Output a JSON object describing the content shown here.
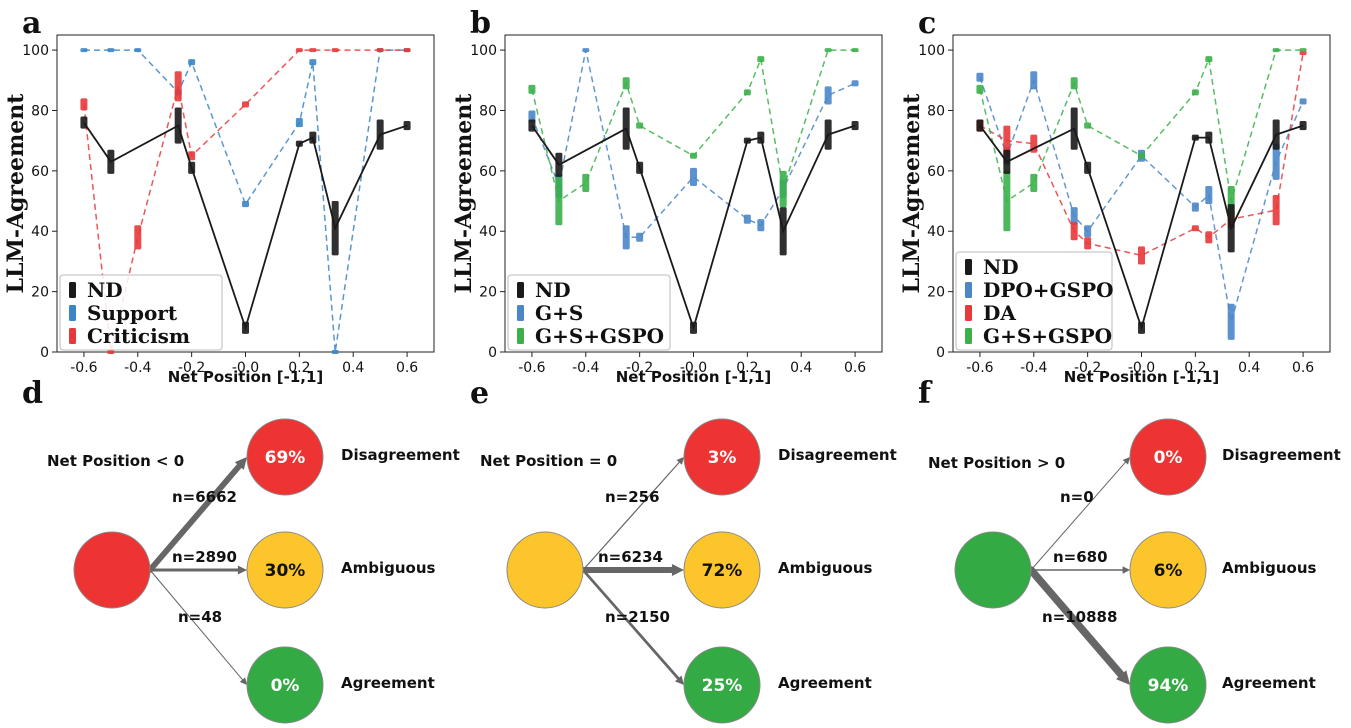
{
  "chart_data": [
    {
      "panel": "a",
      "type": "line",
      "xlabel": "Net Position [-1,1]",
      "ylabel": "LLM-Agreement",
      "xlim": [
        -0.7,
        0.7
      ],
      "ylim": [
        0,
        105
      ],
      "x_ticks": [
        -0.6,
        -0.4,
        -0.2,
        -0.0,
        0.2,
        0.4,
        0.6
      ],
      "x_tick_labels": [
        "-0.6",
        "-0.4",
        "-0.2",
        "-0.0",
        "0.2",
        "0.4",
        "0.6"
      ],
      "y_ticks": [
        0,
        20,
        40,
        60,
        80,
        100
      ],
      "legend": "lower-left",
      "series": [
        {
          "name": "ND",
          "color": "#1a1a1a",
          "style": "solid",
          "x": [
            -0.6,
            -0.5,
            -0.25,
            -0.2,
            0.0,
            0.2,
            0.25,
            0.333,
            0.5,
            0.6
          ],
          "y": [
            76,
            63,
            75,
            61,
            8,
            69,
            71,
            41,
            72,
            75
          ],
          "err": [
            2,
            4,
            6,
            2,
            2,
            1,
            2,
            9,
            5,
            1.5
          ]
        },
        {
          "name": "Support",
          "color": "#3a85c8",
          "style": "dashed",
          "x": [
            -0.6,
            -0.5,
            -0.4,
            -0.25,
            -0.2,
            0.0,
            0.2,
            0.25,
            0.333,
            0.5,
            0.6
          ],
          "y": [
            100,
            100,
            100,
            86,
            96,
            49,
            76,
            96,
            0,
            100,
            100
          ],
          "err": [
            0,
            0,
            0,
            1,
            1,
            1,
            1.5,
            1,
            0,
            0,
            0
          ]
        },
        {
          "name": "Criticism",
          "color": "#e8393a",
          "style": "dashed",
          "x": [
            -0.6,
            -0.5,
            -0.4,
            -0.25,
            -0.2,
            0.0,
            0.2,
            0.25,
            0.333,
            0.5,
            0.6
          ],
          "y": [
            82,
            0,
            38,
            88,
            65,
            82,
            100,
            100,
            100,
            100,
            100
          ],
          "err": [
            2,
            0,
            4,
            5,
            1.5,
            1,
            0,
            0,
            0,
            0,
            0
          ]
        }
      ]
    },
    {
      "panel": "b",
      "type": "line",
      "xlabel": "Net Position [-1,1]",
      "ylabel": "LLM-Agreement",
      "xlim": [
        -0.7,
        0.7
      ],
      "ylim": [
        0,
        105
      ],
      "x_ticks": [
        -0.6,
        -0.4,
        -0.2,
        -0.0,
        0.2,
        0.4,
        0.6
      ],
      "x_tick_labels": [
        "-0.6",
        "-0.4",
        "-0.2",
        "-0.0",
        "0.2",
        "0.4",
        "0.6"
      ],
      "y_ticks": [
        0,
        20,
        40,
        60,
        80,
        100
      ],
      "legend": "lower-left",
      "series": [
        {
          "name": "ND",
          "color": "#1a1a1a",
          "style": "solid",
          "x": [
            -0.6,
            -0.5,
            -0.25,
            -0.2,
            0.0,
            0.2,
            0.25,
            0.333,
            0.5,
            0.6
          ],
          "y": [
            75,
            62,
            74,
            61,
            8,
            70,
            71,
            40,
            72,
            75
          ],
          "err": [
            2,
            4,
            7,
            2,
            2,
            1,
            2,
            8,
            5,
            1.5
          ]
        },
        {
          "name": "G+S",
          "color": "#4a86c8",
          "style": "dashed",
          "x": [
            -0.6,
            -0.5,
            -0.4,
            -0.25,
            -0.2,
            0.0,
            0.2,
            0.25,
            0.333,
            0.5,
            0.6
          ],
          "y": [
            78,
            55,
            100,
            38,
            38,
            58,
            44,
            42,
            54,
            85,
            89
          ],
          "err": [
            2,
            4,
            0,
            4,
            1.5,
            3,
            1.5,
            2,
            3,
            3,
            1
          ]
        },
        {
          "name": "G+S+GSPO",
          "color": "#3bb04a",
          "style": "dashed",
          "x": [
            -0.6,
            -0.5,
            -0.4,
            -0.25,
            -0.2,
            0.0,
            0.2,
            0.25,
            0.333,
            0.5,
            0.6
          ],
          "y": [
            87,
            50,
            56,
            89,
            75,
            65,
            86,
            97,
            54,
            100,
            100
          ],
          "err": [
            1.5,
            8,
            3,
            2,
            1,
            1,
            1,
            1,
            6,
            0,
            0
          ]
        }
      ]
    },
    {
      "panel": "c",
      "type": "line",
      "xlabel": "Net Position [-1,1]",
      "ylabel": "LLM-Agreement",
      "xlim": [
        -0.7,
        0.7
      ],
      "ylim": [
        0,
        105
      ],
      "x_ticks": [
        -0.6,
        -0.4,
        -0.2,
        -0.0,
        0.2,
        0.4,
        0.6
      ],
      "x_tick_labels": [
        "-0.6",
        "-0.4",
        "-0.2",
        "-0.0",
        "0.2",
        "0.4",
        "0.6"
      ],
      "y_ticks": [
        0,
        20,
        40,
        60,
        80,
        100
      ],
      "legend": "lower-left",
      "series": [
        {
          "name": "ND",
          "color": "#1a1a1a",
          "style": "solid",
          "x": [
            -0.6,
            -0.5,
            -0.25,
            -0.2,
            0.0,
            0.2,
            0.25,
            0.333,
            0.5,
            0.6
          ],
          "y": [
            75,
            63,
            74,
            61,
            8,
            71,
            71,
            41,
            72,
            75
          ],
          "err": [
            2,
            4,
            7,
            2,
            2,
            1,
            2,
            8,
            5,
            1.5
          ]
        },
        {
          "name": "DPO+GSPO",
          "color": "#4a86c8",
          "style": "dashed",
          "x": [
            -0.6,
            -0.5,
            -0.4,
            -0.25,
            -0.2,
            0.0,
            0.2,
            0.25,
            0.333,
            0.5,
            0.6
          ],
          "y": [
            91,
            65,
            90,
            45,
            40,
            65,
            48,
            52,
            10,
            63,
            83
          ],
          "err": [
            1.5,
            3,
            3,
            3,
            2,
            2,
            1.5,
            3,
            6,
            6,
            1
          ]
        },
        {
          "name": "DA",
          "color": "#e8393a",
          "style": "dashed",
          "x": [
            -0.6,
            -0.5,
            -0.4,
            -0.25,
            -0.2,
            0.0,
            0.2,
            0.25,
            0.333,
            0.5,
            0.6
          ],
          "y": [
            75,
            70,
            69,
            40,
            36,
            32,
            41,
            38,
            44,
            47,
            99
          ],
          "err": [
            2,
            5,
            3,
            3,
            2,
            3,
            1,
            2,
            3,
            5,
            0.5
          ]
        },
        {
          "name": "G+S+GSPO",
          "color": "#3bb04a",
          "style": "dashed",
          "x": [
            -0.6,
            -0.5,
            -0.4,
            -0.25,
            -0.2,
            0.0,
            0.2,
            0.25,
            0.333,
            0.5,
            0.6
          ],
          "y": [
            87,
            50,
            56,
            89,
            75,
            65,
            86,
            97,
            50,
            100,
            100
          ],
          "err": [
            1.5,
            10,
            3,
            2,
            1,
            1,
            1,
            1,
            5,
            0,
            0
          ]
        }
      ]
    }
  ],
  "flows": [
    {
      "panel": "d",
      "title": "Net Position < 0",
      "source_color": "#ee3333",
      "targets": [
        {
          "pct": "69%",
          "label": "Disagreement",
          "n": "n=6662",
          "count": 6662,
          "color": "#ee3333",
          "text_color": "#ffffff"
        },
        {
          "pct": "30%",
          "label": "Ambiguous",
          "n": "n=2890",
          "count": 2890,
          "color": "#fcc52c",
          "text_color": "#111111"
        },
        {
          "pct": "0%",
          "label": "Agreement",
          "n": "n=48",
          "count": 48,
          "color": "#33aa44",
          "text_color": "#ffffff"
        }
      ]
    },
    {
      "panel": "e",
      "title": "Net Position = 0",
      "source_color": "#fcc52c",
      "targets": [
        {
          "pct": "3%",
          "label": "Disagreement",
          "n": "n=256",
          "count": 256,
          "color": "#ee3333",
          "text_color": "#ffffff"
        },
        {
          "pct": "72%",
          "label": "Ambiguous",
          "n": "n=6234",
          "count": 6234,
          "color": "#fcc52c",
          "text_color": "#111111"
        },
        {
          "pct": "25%",
          "label": "Agreement",
          "n": "n=2150",
          "count": 2150,
          "color": "#33aa44",
          "text_color": "#ffffff"
        }
      ]
    },
    {
      "panel": "f",
      "title": "Net Position > 0",
      "source_color": "#33aa44",
      "targets": [
        {
          "pct": "0%",
          "label": "Disagreement",
          "n": "n=0",
          "count": 0,
          "color": "#ee3333",
          "text_color": "#ffffff"
        },
        {
          "pct": "6%",
          "label": "Ambiguous",
          "n": "n=680",
          "count": 680,
          "color": "#fcc52c",
          "text_color": "#111111"
        },
        {
          "pct": "94%",
          "label": "Agreement",
          "n": "n=10888",
          "count": 10888,
          "color": "#33aa44",
          "text_color": "#ffffff"
        }
      ]
    }
  ]
}
